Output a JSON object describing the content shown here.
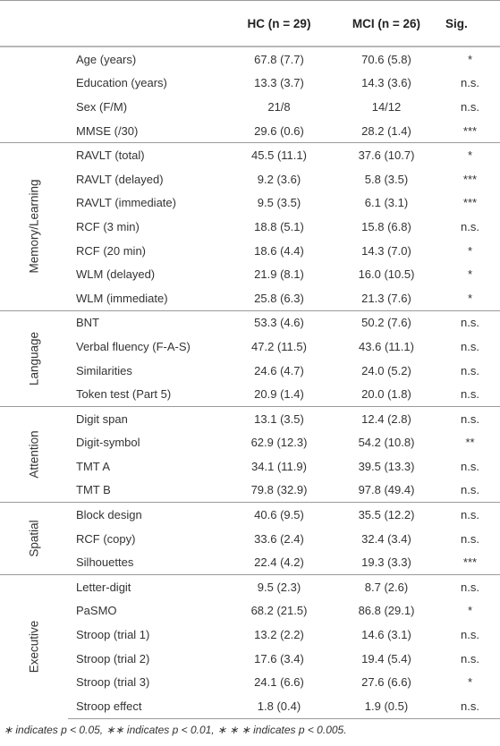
{
  "header": {
    "blank": "",
    "hc": "HC (n = 29)",
    "mci": "MCI (n = 26)",
    "sig": "Sig."
  },
  "groups": [
    {
      "label": "",
      "rows": [
        {
          "name": "Age (years)",
          "hc": "67.8 (7.7)",
          "mci": "70.6 (5.8)",
          "sig": "*"
        },
        {
          "name": "Education (years)",
          "hc": "13.3 (3.7)",
          "mci": "14.3 (3.6)",
          "sig": "n.s."
        },
        {
          "name": "Sex (F/M)",
          "hc": "21/8",
          "mci": "14/12",
          "sig": "n.s."
        },
        {
          "name": "MMSE (/30)",
          "hc": "29.6 (0.6)",
          "mci": "28.2 (1.4)",
          "sig": "***"
        }
      ]
    },
    {
      "label": "Memory/Learning",
      "rows": [
        {
          "name": "RAVLT (total)",
          "hc": "45.5 (11.1)",
          "mci": "37.6 (10.7)",
          "sig": "*"
        },
        {
          "name": "RAVLT (delayed)",
          "hc": "9.2 (3.6)",
          "mci": "5.8 (3.5)",
          "sig": "***"
        },
        {
          "name": "RAVLT (immediate)",
          "hc": "9.5 (3.5)",
          "mci": "6.1 (3.1)",
          "sig": "***"
        },
        {
          "name": "RCF (3 min)",
          "hc": "18.8 (5.1)",
          "mci": "15.8 (6.8)",
          "sig": "n.s."
        },
        {
          "name": "RCF (20 min)",
          "hc": "18.6 (4.4)",
          "mci": "14.3 (7.0)",
          "sig": "*"
        },
        {
          "name": "WLM (delayed)",
          "hc": "21.9 (8.1)",
          "mci": "16.0 (10.5)",
          "sig": "*"
        },
        {
          "name": "WLM (immediate)",
          "hc": "25.8 (6.3)",
          "mci": "21.3 (7.6)",
          "sig": "*"
        }
      ]
    },
    {
      "label": "Language",
      "rows": [
        {
          "name": "BNT",
          "hc": "53.3 (4.6)",
          "mci": "50.2 (7.6)",
          "sig": "n.s."
        },
        {
          "name": "Verbal fluency (F-A-S)",
          "hc": "47.2 (11.5)",
          "mci": "43.6 (11.1)",
          "sig": "n.s."
        },
        {
          "name": "Similarities",
          "hc": "24.6 (4.7)",
          "mci": "24.0 (5.2)",
          "sig": "n.s."
        },
        {
          "name": "Token test (Part 5)",
          "hc": "20.9 (1.4)",
          "mci": "20.0 (1.8)",
          "sig": "n.s."
        }
      ]
    },
    {
      "label": "Attention",
      "rows": [
        {
          "name": "Digit span",
          "hc": "13.1 (3.5)",
          "mci": "12.4 (2.8)",
          "sig": "n.s."
        },
        {
          "name": "Digit-symbol",
          "hc": "62.9 (12.3)",
          "mci": "54.2 (10.8)",
          "sig": "**"
        },
        {
          "name": "TMT A",
          "hc": "34.1 (11.9)",
          "mci": "39.5 (13.3)",
          "sig": "n.s."
        },
        {
          "name": "TMT B",
          "hc": "79.8 (32.9)",
          "mci": "97.8 (49.4)",
          "sig": "n.s."
        }
      ]
    },
    {
      "label": "Spatial",
      "rows": [
        {
          "name": "Block design",
          "hc": "40.6 (9.5)",
          "mci": "35.5 (12.2)",
          "sig": "n.s."
        },
        {
          "name": "RCF (copy)",
          "hc": "33.6 (2.4)",
          "mci": "32.4 (3.4)",
          "sig": "n.s."
        },
        {
          "name": "Silhouettes",
          "hc": "22.4 (4.2)",
          "mci": "19.3 (3.3)",
          "sig": "***"
        }
      ]
    },
    {
      "label": "Executive",
      "rows": [
        {
          "name": "Letter-digit",
          "hc": "9.5 (2.3)",
          "mci": "8.7 (2.6)",
          "sig": "n.s."
        },
        {
          "name": "PaSMO",
          "hc": "68.2 (21.5)",
          "mci": "86.8 (29.1)",
          "sig": "*"
        },
        {
          "name": "Stroop (trial 1)",
          "hc": "13.2 (2.2)",
          "mci": "14.6 (3.1)",
          "sig": "n.s."
        },
        {
          "name": "Stroop (trial 2)",
          "hc": "17.6 (3.4)",
          "mci": "19.4 (5.4)",
          "sig": "n.s."
        },
        {
          "name": "Stroop (trial 3)",
          "hc": "24.1 (6.6)",
          "mci": "27.6 (6.6)",
          "sig": "*"
        },
        {
          "name": "Stroop effect",
          "hc": "1.8 (0.4)",
          "mci": "1.9 (0.5)",
          "sig": "n.s."
        }
      ]
    }
  ],
  "footnote": "∗ indicates p < 0.05, ∗∗ indicates p < 0.01, ∗ ∗ ∗ indicates p < 0.005."
}
